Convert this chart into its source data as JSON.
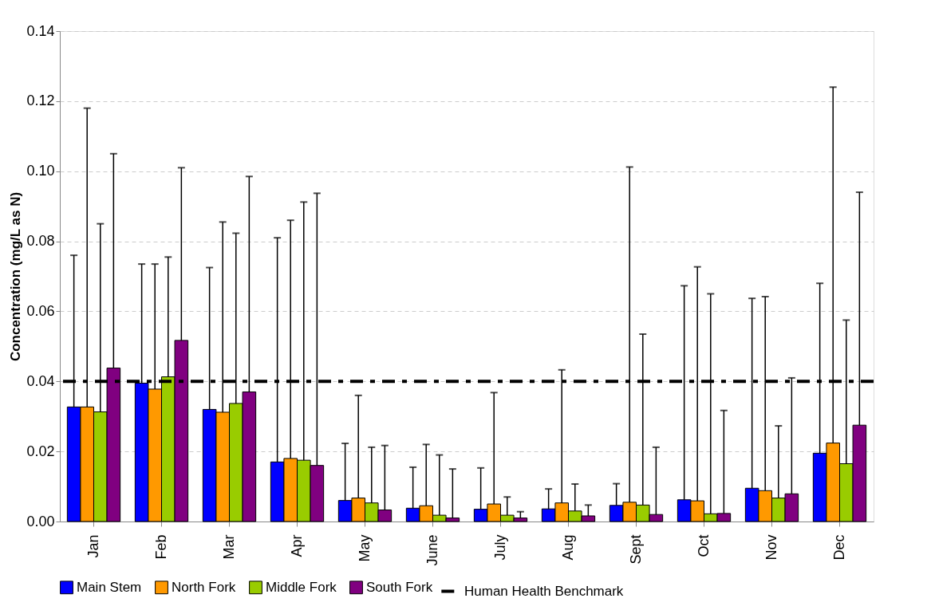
{
  "chart_data": {
    "type": "bar",
    "categories": [
      "Jan",
      "Feb",
      "Mar",
      "Apr",
      "May",
      "June",
      "July",
      "Aug",
      "Sept",
      "Oct",
      "Nov",
      "Dec"
    ],
    "series": [
      {
        "name": "Main Stem",
        "color": "#0000ff",
        "values": [
          0.0327,
          0.0395,
          0.032,
          0.017,
          0.006,
          0.0038,
          0.0035,
          0.0036,
          0.0046,
          0.0062,
          0.0095,
          0.0195
        ],
        "errors": [
          [
            0.0327,
            0.076
          ],
          [
            0.0395,
            0.0735
          ],
          [
            0.032,
            0.0725
          ],
          [
            0.017,
            0.081
          ],
          [
            0.006,
            0.0223
          ],
          [
            0.0038,
            0.0155
          ],
          [
            0.0035,
            0.0153
          ],
          [
            0.0036,
            0.0093
          ],
          [
            0.0046,
            0.0108
          ],
          [
            0.0062,
            0.0673
          ],
          [
            0.0095,
            0.0637
          ],
          [
            0.0195,
            0.068
          ]
        ]
      },
      {
        "name": "North Fork",
        "color": "#ff9900",
        "values": [
          0.0327,
          0.0378,
          0.0312,
          0.018,
          0.0067,
          0.0045,
          0.005,
          0.0053,
          0.0055,
          0.0059,
          0.0088,
          0.0224
        ],
        "errors": [
          [
            0.0327,
            0.118
          ],
          [
            0.0378,
            0.0735
          ],
          [
            0.0312,
            0.0855
          ],
          [
            0.018,
            0.086
          ],
          [
            0.0067,
            0.036
          ],
          [
            0.0045,
            0.022
          ],
          [
            0.005,
            0.0368
          ],
          [
            0.0053,
            0.0433
          ],
          [
            0.0055,
            0.1012
          ],
          [
            0.0059,
            0.0727
          ],
          [
            0.0088,
            0.0642
          ],
          [
            0.0224,
            0.124
          ]
        ]
      },
      {
        "name": "Middle Fork",
        "color": "#99cc00",
        "values": [
          0.0313,
          0.0413,
          0.0337,
          0.0175,
          0.0053,
          0.0018,
          0.0018,
          0.003,
          0.0047,
          0.0022,
          0.0067,
          0.0165
        ],
        "errors": [
          [
            0.0313,
            0.085
          ],
          [
            0.0413,
            0.0755
          ],
          [
            0.0337,
            0.0823
          ],
          [
            0.0175,
            0.0912
          ],
          [
            0.0053,
            0.0212
          ],
          [
            0.0018,
            0.019
          ],
          [
            0.0018,
            0.007
          ],
          [
            0.003,
            0.0107
          ],
          [
            0.0047,
            0.0535
          ],
          [
            0.0022,
            0.065
          ],
          [
            0.0067,
            0.0273
          ],
          [
            0.0165,
            0.0575
          ]
        ]
      },
      {
        "name": "South Fork",
        "color": "#800080",
        "values": [
          0.0438,
          0.0517,
          0.037,
          0.016,
          0.0033,
          0.001,
          0.001,
          0.0016,
          0.002,
          0.0023,
          0.0079,
          0.0275
        ],
        "errors": [
          [
            0.0438,
            0.105
          ],
          [
            0.0517,
            0.101
          ],
          [
            0.037,
            0.0985
          ],
          [
            0.016,
            0.0937
          ],
          [
            0.0033,
            0.0217
          ],
          [
            0.001,
            0.015
          ],
          [
            0.001,
            0.0028
          ],
          [
            0.0016,
            0.0047
          ],
          [
            0.002,
            0.0212
          ],
          [
            0.0023,
            0.0317
          ],
          [
            0.0079,
            0.041
          ],
          [
            0.0275,
            0.094
          ]
        ]
      }
    ],
    "ylabel": "Concentration (mg/L as N)",
    "ylim": [
      0,
      0.14
    ],
    "yticks": [
      {
        "value": 0,
        "label": "0.00"
      },
      {
        "value": 0.02,
        "label": "0.02"
      },
      {
        "value": 0.04,
        "label": "0.04"
      },
      {
        "value": 0.06,
        "label": "0.06"
      },
      {
        "value": 0.08,
        "label": "0.08"
      },
      {
        "value": 0.1,
        "label": "0.10"
      },
      {
        "value": 0.12,
        "label": "0.12"
      },
      {
        "value": 0.14,
        "label": "0.14"
      }
    ],
    "grid": "y",
    "legend": "bottom",
    "ref_lines": [
      {
        "axis": "y",
        "value": 0.04,
        "label": "Human Health Benchmark",
        "color": "#000000",
        "line_style": "dashed"
      }
    ]
  }
}
